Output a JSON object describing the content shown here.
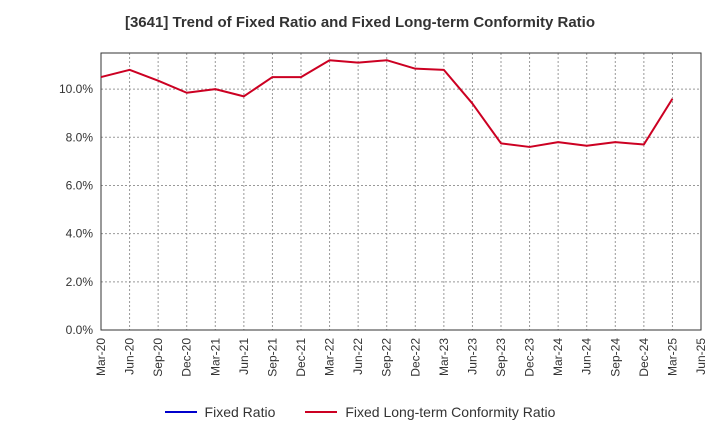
{
  "chart_data": {
    "type": "line",
    "title": "[3641]  Trend of Fixed Ratio and Fixed Long-term Conformity Ratio",
    "xlabel": "",
    "ylabel": "",
    "categories": [
      "Mar-20",
      "Jun-20",
      "Sep-20",
      "Dec-20",
      "Mar-21",
      "Jun-21",
      "Sep-21",
      "Dec-21",
      "Mar-22",
      "Jun-22",
      "Sep-22",
      "Dec-22",
      "Mar-23",
      "Jun-23",
      "Sep-23",
      "Dec-23",
      "Mar-24",
      "Jun-24",
      "Sep-24",
      "Dec-24",
      "Mar-25",
      "Jun-25"
    ],
    "ylim": [
      0,
      11.5
    ],
    "yticks": [
      0,
      2,
      4,
      6,
      8,
      10
    ],
    "ytick_labels": [
      "0.0%",
      "2.0%",
      "4.0%",
      "6.0%",
      "8.0%",
      "10.0%"
    ],
    "grid": true,
    "legend_position": "bottom",
    "series": [
      {
        "name": "Fixed Ratio",
        "color": "#0000cc",
        "values": [
          null,
          null,
          null,
          null,
          null,
          null,
          null,
          null,
          null,
          null,
          null,
          null,
          null,
          null,
          null,
          null,
          null,
          null,
          null,
          null,
          null,
          null
        ]
      },
      {
        "name": "Fixed Long-term Conformity Ratio",
        "color": "#cc0022",
        "values": [
          10.5,
          10.8,
          10.35,
          9.85,
          10.0,
          9.7,
          10.5,
          10.5,
          11.2,
          11.1,
          11.2,
          10.85,
          10.8,
          9.4,
          7.75,
          7.6,
          7.8,
          7.65,
          7.8,
          7.7,
          9.6,
          null
        ]
      }
    ]
  }
}
